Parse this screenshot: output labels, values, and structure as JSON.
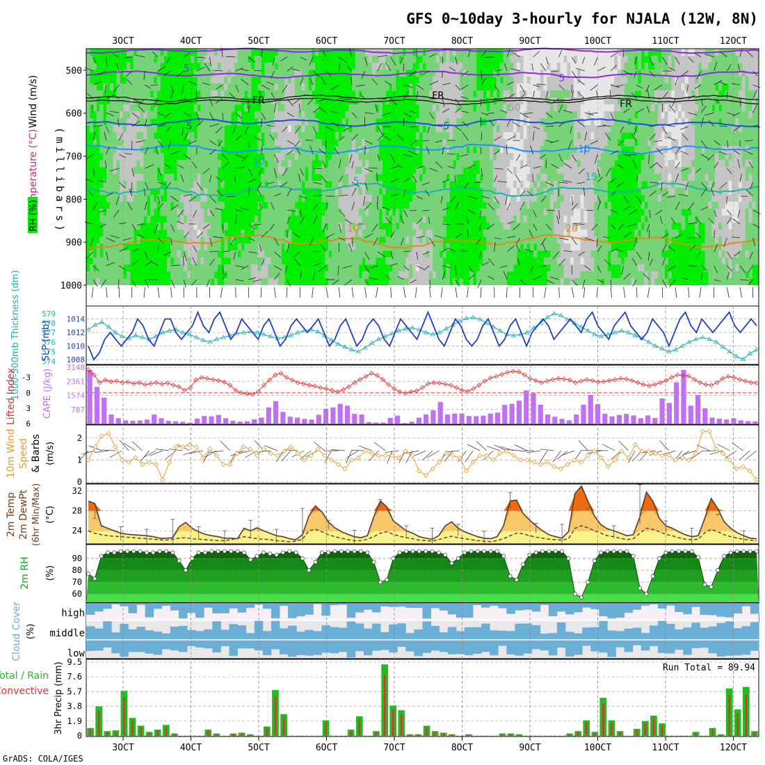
{
  "header": {
    "title": "GFS 0~10day 3-hourly for NJALA (12W, 8N)",
    "credit": "GrADS: COLA/IGES"
  },
  "date_ticks": [
    "3OCT",
    "4OCT",
    "5OCT",
    "6OCT",
    "7OCT",
    "8OCT",
    "9OCT",
    "10OCT",
    "11OCT",
    "12OCT"
  ],
  "colors": {
    "rh_bright": "#00ee00",
    "rh_mid": "#77d377",
    "rh_gray": "#c4c4c4",
    "rh_light": "#e6e6e6",
    "temp_purple": "#8a2be2",
    "temp_blue": "#1a4fd6",
    "temp_sky": "#1e90ff",
    "temp_teal": "#20b2aa",
    "temp_orange": "#e08a1e",
    "slp": "#1f3fbf",
    "thickness": "#2bb3b3",
    "lifted": "#e03030",
    "cape": "#c070f0",
    "wind10": "#ee9a2a",
    "rh2m": "#1ea01e",
    "cloud": "#6baed6",
    "precip_total": "#22bb22",
    "precip_conv": "#e03030"
  },
  "panels": {
    "upper": {
      "label_wind": "Wind (m/s)",
      "label_temp": "Temperature (°C)",
      "label_rh": "RH (%)",
      "ylabel": "(millibars)",
      "yticks": [
        "500",
        "600",
        "700",
        "800",
        "900",
        "1000"
      ],
      "contour_labels": [
        "5",
        "5",
        "FR",
        "FR",
        "FR",
        "5",
        "5",
        "10",
        "10",
        "5",
        "15",
        "10",
        "20",
        "50"
      ]
    },
    "slp": {
      "label_thick": "1000-500mb Thickness (dm)",
      "label_slp": "SLP (mb)",
      "left_ticks": [
        "579",
        "578",
        "577",
        "576",
        "575",
        "574"
      ],
      "right_ticks": [
        "1014",
        "1012",
        "1010",
        "1008"
      ]
    },
    "li": {
      "label_li": "Lifted Index",
      "label_cape": "CAPE (J/kg)",
      "left_ticks": [
        "-3",
        "0",
        "3",
        "6"
      ],
      "right_ticks": [
        "3148",
        "2361",
        "1574",
        "787"
      ]
    },
    "wind10": {
      "label_a": "10m Wind",
      "label_b": "Speed",
      "label_c": "& Barbs",
      "unit": "(m/s)",
      "yticks": [
        "2",
        "1",
        "0"
      ]
    },
    "temp2m": {
      "label_a": "2m Temp",
      "label_b": "2m DewPt",
      "label_c": "(6hr Min/Max)",
      "unit": "(°C)",
      "yticks": [
        "32",
        "28",
        "24"
      ]
    },
    "rh2m": {
      "label": "2m RH",
      "unit": "(%)",
      "yticks": [
        "90",
        "80",
        "70",
        "60"
      ]
    },
    "cloud": {
      "label": "Cloud Cover",
      "unit": "(%)",
      "rows": [
        "high",
        "middle",
        "low"
      ]
    },
    "precip": {
      "label_a": "Total / Rain",
      "label_b": "Convective",
      "ylabel": "3hr Precip (mm)",
      "yticks": [
        "9.5",
        "7.6",
        "5.7",
        "3.8",
        "1.9",
        "0"
      ],
      "run_total": "Run Total = 89.94"
    }
  },
  "chart_data": [
    {
      "type": "line",
      "title": "SLP (mb)",
      "x_start": "2 OCT 12Z",
      "x_step_hours": 3,
      "ylim": [
        1007.5,
        1015.5
      ],
      "values": [
        1010,
        1008,
        1009,
        1011,
        1012,
        1011,
        1010,
        1011,
        1012,
        1014,
        1013,
        1011,
        1010,
        1012,
        1014,
        1014,
        1012,
        1011,
        1012,
        1013,
        1015,
        1013,
        1012,
        1014,
        1015,
        1013,
        1011,
        1012,
        1014,
        1013,
        1012,
        1011,
        1013,
        1014,
        1012,
        1010,
        1011,
        1013,
        1014,
        1013,
        1012,
        1013,
        1014,
        1012,
        1010,
        1011,
        1013,
        1014,
        1012,
        1010,
        1011,
        1013,
        1014,
        1013,
        1011,
        1010,
        1012,
        1014,
        1013,
        1012,
        1011,
        1013,
        1015,
        1013,
        1011,
        1010,
        1012,
        1014,
        1013,
        1011,
        1010,
        1011,
        1013,
        1014,
        1012,
        1010,
        1011,
        1013,
        1014,
        1012,
        1010,
        1012,
        1013,
        1014,
        1013,
        1011,
        1012,
        1013,
        1014,
        1013,
        1012,
        1014,
        1015,
        1013,
        1012,
        1011,
        1013,
        1014,
        1015,
        1013,
        1012,
        1011,
        1012,
        1014,
        1013,
        1012,
        1010,
        1012,
        1014,
        1015,
        1013,
        1012,
        1014,
        1013,
        1012,
        1013,
        1014,
        1015,
        1013,
        1012,
        1013,
        1014,
        1013
      ]
    },
    {
      "type": "line",
      "title": "1000-500mb Thickness (dm)",
      "ylim": [
        573.8,
        579.5
      ],
      "values": [
        577.3,
        577.8,
        578.1,
        577.6,
        577.0,
        576.6,
        576.4,
        576.7,
        576.5,
        576.3,
        576.6,
        577.0,
        577.2,
        577.3,
        577.0,
        576.8,
        576.5,
        576.2,
        576.0,
        576.3,
        576.5,
        576.7,
        576.9,
        577.0,
        577.1,
        577.0,
        576.8,
        576.6,
        576.4,
        576.5,
        576.7,
        577.0,
        577.2,
        577.3,
        577.1,
        576.7,
        576.2,
        575.8,
        575.5,
        575.2,
        575.0,
        575.4,
        575.9,
        576.3,
        576.6,
        576.9,
        577.2,
        577.4,
        577.5,
        577.3,
        577.0,
        576.8,
        577.0,
        577.4,
        577.8,
        578.2,
        578.5,
        578.6,
        578.4,
        578.0,
        577.6,
        577.2,
        576.8,
        576.7,
        576.8,
        577.0,
        577.5,
        578.0,
        578.6,
        579.0,
        578.8,
        578.4,
        578.0,
        577.6,
        577.2,
        576.8,
        576.6,
        576.8,
        577.0,
        577.2,
        577.0,
        576.7,
        576.4,
        576.0,
        575.6,
        575.3,
        575.0,
        575.2,
        575.6,
        576.0,
        576.3,
        576.5,
        576.3,
        576.0,
        575.5,
        575.0,
        574.5,
        574.2,
        574.8,
        575.2
      ]
    },
    {
      "type": "line",
      "title": "Lifted Index",
      "ylim": [
        6,
        -5
      ],
      "values": [
        -4.5,
        -3.5,
        -2.0,
        -2.5,
        -2.2,
        -2.3,
        -2.0,
        -2.1,
        -1.8,
        -2.0,
        -1.6,
        -1.8,
        -2.0,
        -1.7,
        -1.9,
        -1.5,
        -1.2,
        -0.5,
        -1.0,
        -2.5,
        -3.0,
        -2.8,
        -2.6,
        -2.4,
        -2.1,
        -1.5,
        -0.5,
        0.0,
        0.2,
        0.3,
        -0.2,
        -1.5,
        -2.5,
        -3.5,
        -3.8,
        -3.0,
        -2.5,
        -2.0,
        -1.8,
        -1.5,
        -1.3,
        -1.0,
        -0.8,
        -0.5,
        -0.2,
        -0.6,
        -1.2,
        -2.0,
        -2.6,
        -3.2,
        -3.8,
        -3.4,
        -2.6,
        -1.6,
        -0.8,
        -0.2,
        0.1,
        -0.2,
        -0.4,
        -1.0,
        -1.8,
        -2.0,
        -1.9,
        -1.7,
        -1.5,
        -1.0,
        -0.5,
        -0.3,
        -0.8,
        -1.5,
        -2.3,
        -2.9,
        -3.2,
        -3.6,
        -4.0,
        -4.2,
        -4.1,
        -3.5,
        -2.8,
        -2.4,
        -2.0,
        -2.3,
        -2.6,
        -2.8,
        -2.7,
        -2.5,
        -2.0,
        -2.3,
        -2.6,
        -2.4,
        -2.1,
        -2.2,
        -2.4,
        -2.6,
        -2.8,
        -2.7,
        -2.4,
        -2.0,
        -1.6,
        -1.4,
        -1.6,
        -2.0,
        -2.4,
        -3.0,
        -3.5,
        -3.4,
        -3.3,
        -2.6,
        -2.0,
        -1.6,
        -1.5,
        -2.0,
        -2.8,
        -3.2,
        -3.0,
        -2.6,
        -2.3,
        -2.0,
        -1.9
      ]
    },
    {
      "type": "bar",
      "title": "CAPE (J/kg)",
      "ylim": [
        0,
        3148
      ],
      "values": [
        3000,
        2050,
        1450,
        500,
        300,
        180,
        150,
        170,
        220,
        500,
        300,
        150,
        130,
        100,
        60,
        280,
        420,
        400,
        480,
        300,
        150,
        110,
        120,
        240,
        330,
        900,
        1250,
        650,
        380,
        330,
        260,
        220,
        490,
        820,
        900,
        1100,
        1000,
        540,
        500,
        80,
        60,
        60,
        320,
        440,
        30,
        100,
        330,
        510,
        740,
        1200,
        500,
        560,
        560,
        420,
        410,
        440,
        560,
        610,
        1040,
        1100,
        1280,
        1850,
        1700,
        1050,
        500,
        380,
        260,
        180,
        500,
        1050,
        1600,
        1080,
        550,
        400,
        480,
        540,
        450,
        300,
        450,
        320,
        1400,
        1150,
        2300,
        3000,
        1000,
        1600,
        850,
        330,
        270,
        230,
        300,
        180,
        140,
        120
      ]
    },
    {
      "type": "line",
      "title": "10m Wind Speed (m/s)",
      "ylim": [
        0,
        2.5
      ],
      "values": [
        1.0,
        1.6,
        2.1,
        2.2,
        1.6,
        1.0,
        0.9,
        1.1,
        0.8,
        0.9,
        0.8,
        0.1,
        0.9,
        1.6,
        1.6,
        1.7,
        1.6,
        1.1,
        1.5,
        1.2,
        0.8,
        0.8,
        1.3,
        1.6,
        1.5,
        1.2,
        1.5,
        1.3,
        1.2,
        1.4,
        1.6,
        1.3,
        1.0,
        1.2,
        1.5,
        1.2,
        1.0,
        0.8,
        0.6,
        1.0,
        1.1,
        1.4,
        1.3,
        1.2,
        1.2,
        1.2,
        1.1,
        1.4,
        1.2,
        0.5,
        0.3,
        0.6,
        0.9,
        1.3,
        1.2,
        1.1,
        0.5,
        0.9,
        1.2,
        1.2,
        1.0,
        1.3,
        1.4,
        1.2,
        1.0,
        1.0,
        0.9,
        0.8,
        0.9,
        0.7,
        0.6,
        0.8,
        1.0,
        0.9,
        1.2,
        1.4,
        1.1,
        0.7,
        1.0,
        1.4,
        1.1,
        1.7,
        1.4,
        1.4,
        1.3,
        1.2,
        1.2,
        1.0,
        1.1,
        1.0,
        1.3,
        2.3,
        2.3,
        1.5,
        1.3,
        1.0,
        0.6,
        0.7,
        0.5,
        0.1
      ]
    },
    {
      "type": "area",
      "title": "2m Temp (°C)",
      "ylim": [
        21.5,
        33
      ],
      "values": [
        30,
        29.5,
        25,
        24.5,
        24,
        23.5,
        23.3,
        23.2,
        23.1,
        23.0,
        22.8,
        22.5,
        22.5,
        22.6,
        24.8,
        25.7,
        24.5,
        23.8,
        23.3,
        23.0,
        22.8,
        22.5,
        22.5,
        22.4,
        24.5,
        24.0,
        24.6,
        24.0,
        23.5,
        23.0,
        22.8,
        22.4,
        22.2,
        23.2,
        27.0,
        29.0,
        27.8,
        25.8,
        24.6,
        23.8,
        23.3,
        22.8,
        22.6,
        23.0,
        26.8,
        30.0,
        28.8,
        26.0,
        25.0,
        24.0,
        23.5,
        22.8,
        22.5,
        22.3,
        23.0,
        25.0,
        25.8,
        24.5,
        23.8,
        23.3,
        22.8,
        22.5,
        22.4,
        22.8,
        25.0,
        30.0,
        30.2,
        27.5,
        26.2,
        25.0,
        24.0,
        23.2,
        22.8,
        22.5,
        23.8,
        31.5,
        33.0,
        30.0,
        27.0,
        25.2,
        24.4,
        24.0,
        23.5,
        23.0,
        23.2,
        26.8,
        31.8,
        30.0,
        26.5,
        25.0,
        24.5,
        23.8,
        23.2,
        22.8,
        23.0,
        26.5,
        30.5,
        28.5,
        25.8,
        24.5,
        23.6,
        23.0,
        22.5,
        22.4
      ]
    },
    {
      "type": "line",
      "title": "2m DewPt (°C)",
      "ylim": [
        21.5,
        33
      ],
      "values": [
        24,
        23.5,
        23.2,
        23.0,
        22.9,
        22.8,
        22.7,
        22.6,
        22.5,
        22.4,
        22.3,
        22.2,
        22.1,
        22.3,
        22.5,
        22.6,
        22.4,
        22.3,
        22.2,
        22.1,
        22.0,
        22.0,
        22.2,
        22.5,
        22.8,
        22.6,
        22.4,
        22.3,
        22.2,
        22.0,
        21.9,
        21.8,
        21.9,
        22.3,
        24.0,
        24.3,
        23.8,
        23.2,
        22.8,
        22.5,
        22.2,
        22.0,
        22.0,
        22.3,
        22.8,
        23.5,
        23.8,
        23.3,
        22.9,
        22.6,
        22.4,
        22.1,
        22.0,
        21.9,
        22.2,
        22.6,
        22.9,
        22.6,
        22.4,
        22.2,
        22.0,
        21.9,
        21.8,
        22.0,
        22.4,
        23.0,
        23.5,
        23.4,
        23.0,
        22.7,
        22.5,
        22.3,
        22.2,
        22.1,
        22.4,
        24.5,
        25.0,
        24.6,
        24.0,
        23.5,
        23.0,
        22.8,
        22.5,
        22.2,
        22.4,
        23.5,
        24.5,
        24.3,
        23.8,
        23.3,
        23.0,
        22.6,
        22.3,
        22.2,
        22.3,
        23.6,
        24.3,
        23.8,
        23.2,
        22.8,
        22.5,
        22.3,
        22.1,
        22.0
      ]
    },
    {
      "type": "area",
      "title": "2m RH (%)",
      "ylim": [
        53,
        100
      ],
      "values": [
        77,
        73,
        92,
        95,
        95,
        96,
        96,
        96,
        96,
        95,
        95,
        96,
        96,
        95,
        88,
        80,
        90,
        95,
        95,
        96,
        96,
        96,
        96,
        96,
        95,
        89,
        92,
        95,
        94,
        93,
        95,
        96,
        95,
        90,
        80,
        87,
        95,
        95,
        96,
        96,
        96,
        96,
        96,
        95,
        87,
        70,
        72,
        90,
        95,
        96,
        96,
        96,
        96,
        96,
        95,
        93,
        86,
        90,
        95,
        96,
        96,
        96,
        96,
        96,
        92,
        75,
        72,
        85,
        93,
        95,
        96,
        96,
        96,
        96,
        90,
        60,
        57,
        70,
        88,
        95,
        96,
        96,
        96,
        96,
        92,
        65,
        60,
        75,
        90,
        95,
        96,
        96,
        96,
        96,
        91,
        68,
        66,
        80,
        92,
        95,
        96,
        96,
        96,
        96
      ]
    },
    {
      "type": "bar",
      "title": "3hr Precip (mm)",
      "ylim": [
        0,
        9.5
      ],
      "values": [
        1.0,
        3.8,
        0.6,
        0.7,
        5.8,
        2.3,
        1.3,
        0.5,
        0.8,
        1.4,
        0.3,
        0,
        0,
        0,
        0.8,
        0.3,
        0,
        0.3,
        0.4,
        0.2,
        0,
        1.2,
        5.9,
        2.8,
        0,
        0,
        0,
        0,
        2.0,
        0,
        0,
        0.8,
        2.5,
        0,
        0.6,
        9.2,
        3.9,
        3.3,
        0.2,
        0.2,
        1.3,
        0.6,
        0.4,
        0.2,
        0,
        0.2,
        0,
        0,
        0,
        0.3,
        0.3,
        0.2,
        0,
        0,
        0,
        0,
        0,
        0.3,
        0.6,
        2.0,
        0.5,
        4.9,
        2.0,
        0.6,
        0,
        0.9,
        1.9,
        2.6,
        1.6,
        0,
        0,
        0,
        0.5,
        0,
        1.0,
        0.2,
        6.1,
        3.4,
        6.3,
        0.6
      ]
    }
  ]
}
